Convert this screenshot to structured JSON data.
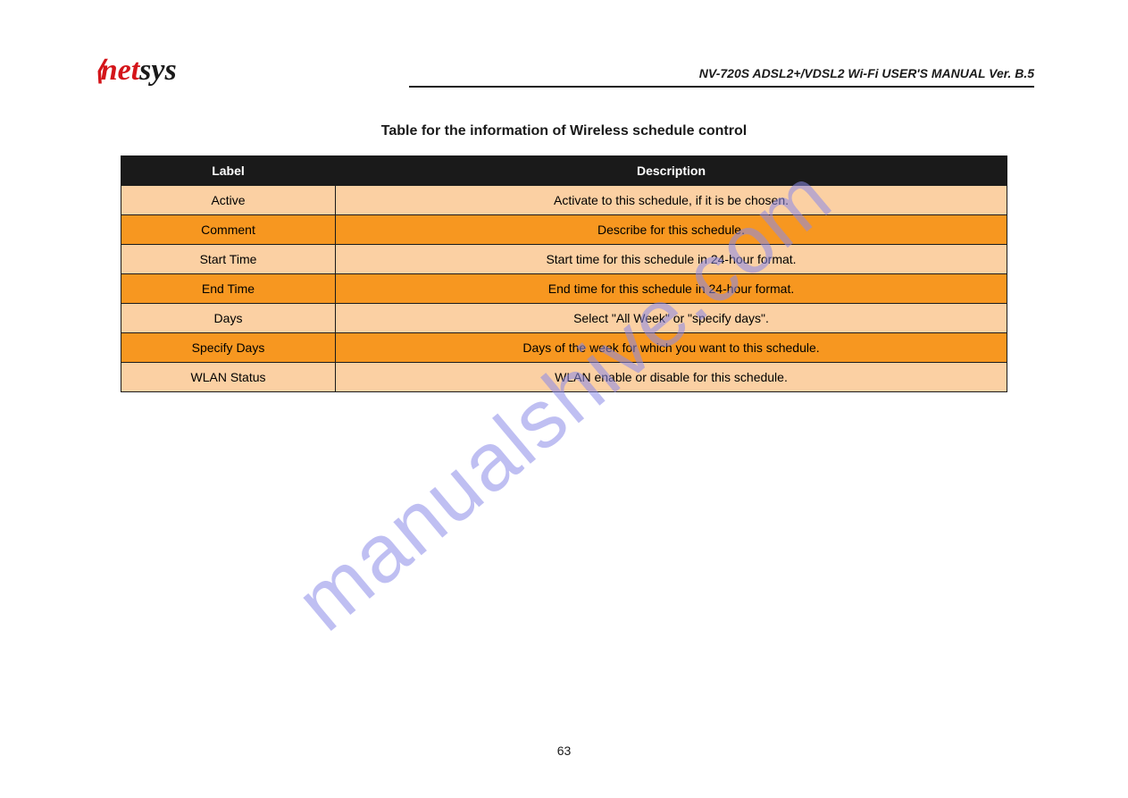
{
  "logo": {
    "net": "net",
    "sys": "sys"
  },
  "header_subtitle": "NV-720S ADSL2+/VDSL2 Wi-Fi USER'S MANUAL Ver. B.5",
  "table_caption": "Table for the information of Wireless schedule control",
  "table": {
    "columns": [
      "Label",
      "Description"
    ],
    "rows": [
      {
        "label": "Active",
        "desc": "Activate to this schedule, if it is be chosen."
      },
      {
        "label": "Comment",
        "desc": "Describe for this schedule."
      },
      {
        "label": "Start Time",
        "desc": "Start time for this schedule in 24-hour format."
      },
      {
        "label": "End Time",
        "desc": "End time for this schedule in 24-hour format."
      },
      {
        "label": "Days",
        "desc": "Select \"All Week\" or \"specify days\"."
      },
      {
        "label": "Specify Days",
        "desc": "Days of the week for which you want to this schedule."
      },
      {
        "label": "WLAN Status",
        "desc": "WLAN enable or disable for this schedule."
      }
    ],
    "header_bg": "#1a1a1a",
    "header_fg": "#ffffff",
    "row_light_bg": "#fbd0a3",
    "row_dark_bg": "#f79720",
    "border_color": "#1a1a1a"
  },
  "watermark": "manualshive.com",
  "page_number": "63"
}
